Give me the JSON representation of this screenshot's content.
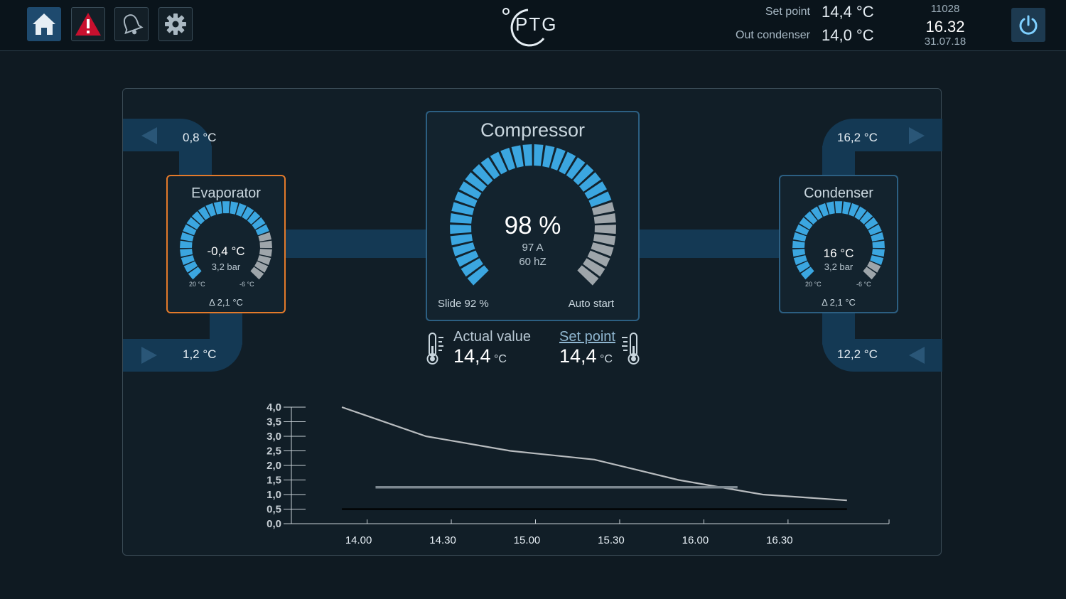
{
  "header": {
    "nav": [
      {
        "name": "home-icon",
        "active": true
      },
      {
        "name": "warning-icon",
        "active": false
      },
      {
        "name": "bell-icon",
        "active": false
      },
      {
        "name": "gear-icon",
        "active": false
      }
    ],
    "logo_text": "PTG",
    "setpoint_label": "Set point",
    "setpoint_value": "14,4 °C",
    "out_condenser_label": "Out condenser",
    "out_condenser_value": "14,0 °C",
    "code": "11028",
    "time": "16.32",
    "date": "31.07.18"
  },
  "evaporator": {
    "title": "Evaporator",
    "temp": "-0,4 °C",
    "pressure": "3,2 bar",
    "scale_left": "20 °C",
    "scale_right": "-6 °C",
    "delta": "Δ 2,1 °C",
    "pipe_top": "0,8 °C",
    "pipe_bottom": "1,2 °C",
    "gauge_fraction": 0.77
  },
  "compressor": {
    "title": "Compressor",
    "percent": "98 %",
    "current": "97 A",
    "frequency": "60 hZ",
    "slide": "Slide  92 %",
    "mode": "Auto start",
    "gauge_fraction": 0.77
  },
  "condenser": {
    "title": "Condenser",
    "temp": "16 °C",
    "pressure": "3,2 bar",
    "scale_left": "20 °C",
    "scale_right": "-6 °C",
    "delta": "Δ 2,1 °C",
    "pipe_top": "16,2 °C",
    "pipe_bottom": "12,2 °C",
    "gauge_fraction": 0.9
  },
  "readouts": {
    "actual_label": "Actual value",
    "actual_value": "14,4",
    "actual_unit": "°C",
    "setpoint_label": "Set point",
    "setpoint_value": "14,4",
    "setpoint_unit": "°C"
  },
  "colors": {
    "accent": "#3ba6e0",
    "inactive": "#9ea5aa",
    "pipe": "#143954",
    "evaporator_border": "#e37a2a",
    "panel_border": "#2c5f82"
  },
  "chart_data": {
    "type": "line",
    "x": [
      "14.00",
      "14.30",
      "15.00",
      "15.30",
      "16.00",
      "16.30"
    ],
    "y_ticks": [
      "4,0",
      "3,5",
      "3,0",
      "2,5",
      "2,0",
      "1,5",
      "1,0",
      "0,5",
      "0,0"
    ],
    "ylim": [
      0,
      4
    ],
    "series": [
      {
        "points": [
          [
            13.85,
            4.0
          ],
          [
            14.35,
            3.0
          ],
          [
            14.85,
            2.5
          ],
          [
            15.35,
            2.2
          ],
          [
            15.85,
            1.5
          ],
          [
            16.35,
            1.0
          ],
          [
            16.85,
            0.8
          ]
        ],
        "color": "#b8bcbf"
      },
      {
        "points": [
          [
            14.05,
            1.25
          ],
          [
            16.2,
            1.25
          ]
        ],
        "color": "#7d8890"
      },
      {
        "points": [
          [
            13.85,
            0.5
          ],
          [
            16.85,
            0.5
          ]
        ],
        "color": "#000000"
      }
    ]
  }
}
